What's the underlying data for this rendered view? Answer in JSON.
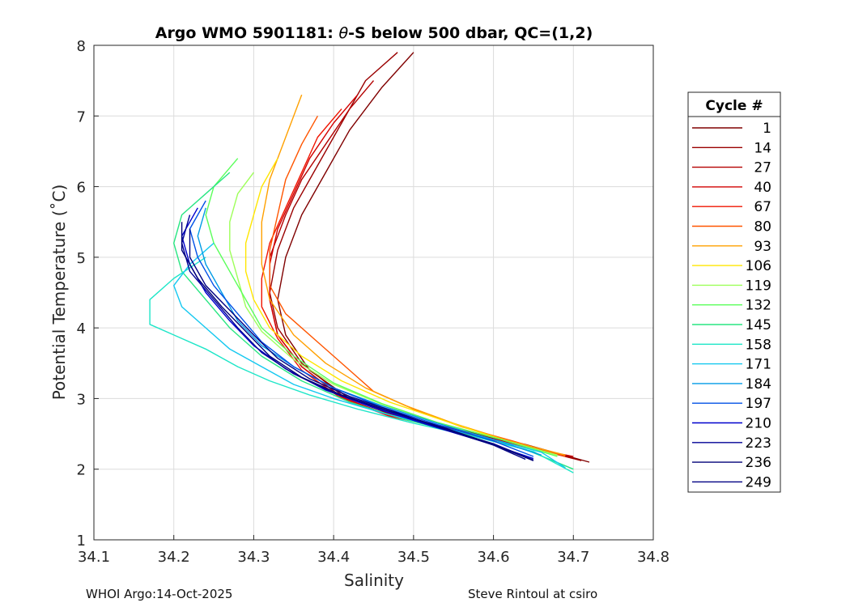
{
  "chart_data": {
    "type": "line",
    "title_prefix": "Argo WMO 5901181: ",
    "title_theta": "θ",
    "title_suffix": "-S below 500 dbar,  QC=(1,2)",
    "xlabel": "Salinity",
    "ylabel": "Potential Temperature (˚C)",
    "xlim": [
      34.1,
      34.8
    ],
    "ylim": [
      1,
      8
    ],
    "xticks": [
      "34.1",
      "34.2",
      "34.3",
      "34.4",
      "34.5",
      "34.6",
      "34.7",
      "34.8"
    ],
    "yticks": [
      "1",
      "2",
      "3",
      "4",
      "5",
      "6",
      "7",
      "8"
    ],
    "grid": true,
    "legend_title": "Cycle #",
    "legend_position": "outside-right",
    "series": [
      {
        "name": "1",
        "color": "#800000",
        "salinity": [
          34.5,
          34.46,
          34.42,
          34.39,
          34.36,
          34.34,
          34.33,
          34.34,
          34.37,
          34.42,
          34.48,
          34.56,
          34.64,
          34.72
        ],
        "theta": [
          7.9,
          7.4,
          6.8,
          6.2,
          5.6,
          5.0,
          4.4,
          3.9,
          3.4,
          3.0,
          2.75,
          2.55,
          2.35,
          2.1
        ]
      },
      {
        "name": "14",
        "color": "#9a0000",
        "salinity": [
          34.48,
          34.44,
          34.41,
          34.38,
          34.35,
          34.33,
          34.32,
          34.33,
          34.36,
          34.41,
          34.47,
          34.55,
          34.63,
          34.71
        ],
        "theta": [
          7.9,
          7.5,
          6.9,
          6.3,
          5.7,
          5.1,
          4.5,
          4.0,
          3.5,
          3.05,
          2.78,
          2.56,
          2.36,
          2.12
        ]
      },
      {
        "name": "27",
        "color": "#b40000",
        "salinity": [
          34.45,
          34.42,
          34.39,
          34.36,
          34.34,
          34.32,
          34.32,
          34.33,
          34.36,
          34.41,
          34.47,
          34.55,
          34.63,
          34.7
        ],
        "theta": [
          7.5,
          7.1,
          6.6,
          6.1,
          5.6,
          5.0,
          4.4,
          3.9,
          3.45,
          3.02,
          2.76,
          2.55,
          2.35,
          2.15
        ]
      },
      {
        "name": "40",
        "color": "#d20000",
        "salinity": [
          34.43,
          34.4,
          34.37,
          34.35,
          34.33,
          34.32,
          34.32,
          34.33,
          34.36,
          34.41,
          34.47,
          34.55,
          34.62,
          34.7
        ],
        "theta": [
          7.3,
          6.9,
          6.4,
          5.9,
          5.4,
          4.9,
          4.4,
          3.9,
          3.45,
          3.02,
          2.76,
          2.55,
          2.36,
          2.18
        ]
      },
      {
        "name": "67",
        "color": "#f01400",
        "salinity": [
          34.41,
          34.38,
          34.36,
          34.34,
          34.32,
          34.31,
          34.31,
          34.33,
          34.36,
          34.41,
          34.47,
          34.55,
          34.62,
          34.69
        ],
        "theta": [
          7.1,
          6.7,
          6.2,
          5.7,
          5.2,
          4.7,
          4.3,
          3.85,
          3.4,
          3.0,
          2.75,
          2.55,
          2.36,
          2.2
        ]
      },
      {
        "name": "80",
        "color": "#ff5500",
        "salinity": [
          34.38,
          34.36,
          34.34,
          34.33,
          34.32,
          34.32,
          34.34,
          34.38,
          34.42,
          34.45,
          34.5,
          34.56,
          34.63,
          34.69
        ],
        "theta": [
          7.0,
          6.6,
          6.1,
          5.6,
          5.1,
          4.6,
          4.2,
          3.8,
          3.4,
          3.1,
          2.85,
          2.6,
          2.38,
          2.18
        ]
      },
      {
        "name": "93",
        "color": "#ffa000",
        "salinity": [
          34.36,
          34.34,
          34.32,
          34.31,
          34.31,
          34.32,
          34.35,
          34.39,
          34.44,
          34.49,
          34.55,
          34.62,
          34.69
        ],
        "theta": [
          7.3,
          6.7,
          6.1,
          5.5,
          4.9,
          4.4,
          3.9,
          3.5,
          3.15,
          2.9,
          2.65,
          2.4,
          2.2
        ]
      },
      {
        "name": "106",
        "color": "#ffe600",
        "salinity": [
          34.33,
          34.31,
          34.3,
          34.29,
          34.29,
          34.3,
          34.32,
          34.36,
          34.41,
          34.47,
          34.54,
          34.61,
          34.68
        ],
        "theta": [
          6.4,
          6.0,
          5.6,
          5.2,
          4.8,
          4.4,
          4.0,
          3.6,
          3.25,
          2.95,
          2.68,
          2.42,
          2.2
        ]
      },
      {
        "name": "119",
        "color": "#9eff5a",
        "salinity": [
          34.3,
          34.28,
          34.27,
          34.27,
          34.28,
          34.29,
          34.31,
          34.35,
          34.4,
          34.46,
          34.53,
          34.61,
          34.68
        ],
        "theta": [
          6.2,
          5.9,
          5.5,
          5.1,
          4.7,
          4.3,
          3.95,
          3.55,
          3.2,
          2.92,
          2.66,
          2.42,
          2.2
        ]
      },
      {
        "name": "132",
        "color": "#5aff5a",
        "salinity": [
          34.28,
          34.25,
          34.24,
          34.25,
          34.27,
          34.29,
          34.31,
          34.35,
          34.4,
          34.46,
          34.53,
          34.61,
          34.68
        ],
        "theta": [
          6.4,
          6.0,
          5.6,
          5.2,
          4.8,
          4.4,
          4.0,
          3.6,
          3.22,
          2.93,
          2.66,
          2.42,
          2.18
        ]
      },
      {
        "name": "145",
        "color": "#28e682",
        "salinity": [
          34.27,
          34.24,
          34.21,
          34.2,
          34.21,
          34.24,
          34.27,
          34.31,
          34.36,
          34.42,
          34.49,
          34.57,
          34.64,
          34.7
        ],
        "theta": [
          6.2,
          5.9,
          5.6,
          5.2,
          4.8,
          4.4,
          4.0,
          3.6,
          3.25,
          2.95,
          2.7,
          2.48,
          2.28,
          2.0
        ]
      },
      {
        "name": "158",
        "color": "#1ee6c8",
        "salinity": [
          34.24,
          34.2,
          34.17,
          34.17,
          34.2,
          34.24,
          34.28,
          34.32,
          34.37,
          34.43,
          34.5,
          34.58,
          34.65,
          34.7
        ],
        "theta": [
          5.0,
          4.7,
          4.4,
          4.05,
          3.9,
          3.7,
          3.45,
          3.25,
          3.05,
          2.85,
          2.65,
          2.45,
          2.25,
          1.95
        ]
      },
      {
        "name": "171",
        "color": "#14c8f0",
        "salinity": [
          34.25,
          34.22,
          34.2,
          34.21,
          34.24,
          34.27,
          34.31,
          34.35,
          34.4,
          34.46,
          34.53,
          34.6,
          34.66,
          34.69
        ],
        "theta": [
          5.2,
          4.9,
          4.6,
          4.3,
          4.0,
          3.7,
          3.45,
          3.2,
          3.0,
          2.8,
          2.6,
          2.42,
          2.24,
          2.02
        ]
      },
      {
        "name": "184",
        "color": "#009be6",
        "salinity": [
          34.24,
          34.23,
          34.24,
          34.26,
          34.28,
          34.31,
          34.35,
          34.4,
          34.46,
          34.53,
          34.6,
          34.66
        ],
        "theta": [
          5.7,
          5.3,
          4.9,
          4.5,
          4.1,
          3.75,
          3.45,
          3.15,
          2.9,
          2.65,
          2.42,
          2.2
        ]
      },
      {
        "name": "197",
        "color": "#0050e6",
        "salinity": [
          34.24,
          34.22,
          34.23,
          34.25,
          34.28,
          34.31,
          34.35,
          34.4,
          34.46,
          34.53,
          34.6,
          34.65
        ],
        "theta": [
          5.8,
          5.4,
          5.0,
          4.6,
          4.2,
          3.8,
          3.45,
          3.15,
          2.88,
          2.63,
          2.4,
          2.18
        ]
      },
      {
        "name": "210",
        "color": "#0000cd",
        "salinity": [
          34.23,
          34.21,
          34.22,
          34.24,
          34.27,
          34.3,
          34.34,
          34.39,
          34.45,
          34.52,
          34.59,
          34.65
        ],
        "theta": [
          5.7,
          5.3,
          4.9,
          4.5,
          4.1,
          3.75,
          3.42,
          3.12,
          2.87,
          2.62,
          2.38,
          2.15
        ]
      },
      {
        "name": "223",
        "color": "#000096",
        "salinity": [
          34.22,
          34.21,
          34.22,
          34.25,
          34.28,
          34.31,
          34.35,
          34.4,
          34.46,
          34.53,
          34.6,
          34.65
        ],
        "theta": [
          5.6,
          5.2,
          4.8,
          4.4,
          4.0,
          3.65,
          3.35,
          3.08,
          2.85,
          2.6,
          2.36,
          2.13
        ]
      },
      {
        "name": "236",
        "color": "#000078",
        "salinity": [
          34.21,
          34.21,
          34.23,
          34.26,
          34.29,
          34.32,
          34.36,
          34.41,
          34.47,
          34.54,
          34.6,
          34.65
        ],
        "theta": [
          5.5,
          5.1,
          4.7,
          4.3,
          3.95,
          3.6,
          3.3,
          3.05,
          2.82,
          2.58,
          2.35,
          2.12
        ]
      },
      {
        "name": "249",
        "color": "#000082",
        "salinity": [
          34.22,
          34.22,
          34.24,
          34.27,
          34.3,
          34.33,
          34.37,
          34.42,
          34.48,
          34.54,
          34.6,
          34.64
        ],
        "theta": [
          5.4,
          5.0,
          4.6,
          4.25,
          3.9,
          3.57,
          3.28,
          3.03,
          2.8,
          2.56,
          2.34,
          2.14
        ]
      }
    ]
  },
  "footer": {
    "left": "WHOI Argo:14-Oct-2025",
    "right": "Steve Rintoul at csiro"
  }
}
